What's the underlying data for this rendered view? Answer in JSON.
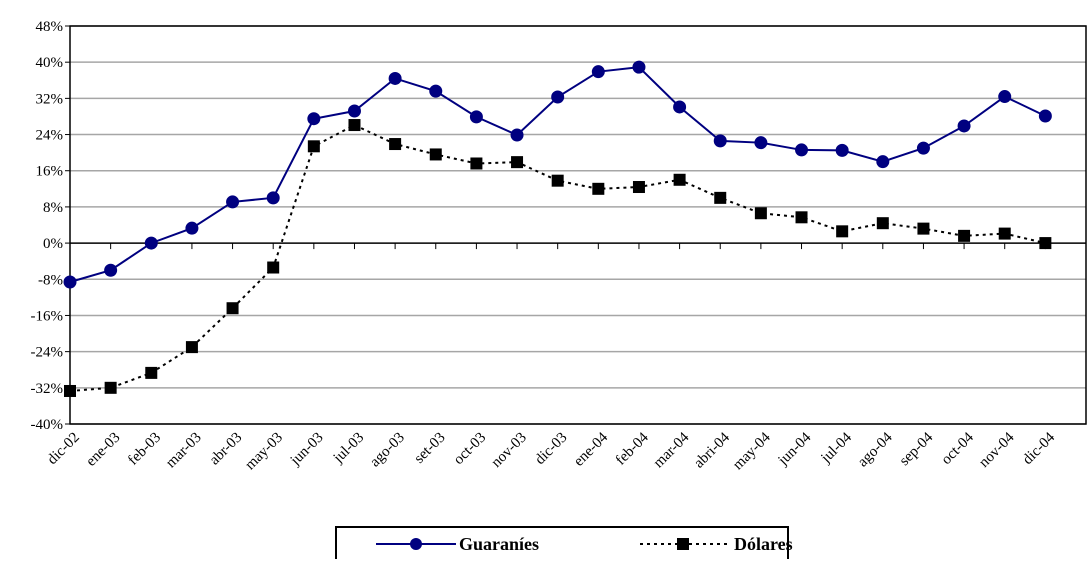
{
  "chart_data": {
    "type": "line",
    "categories": [
      "dic-02",
      "ene-03",
      "feb-03",
      "mar-03",
      "abr-03",
      "may-03",
      "jun-03",
      "jul-03",
      "ago-03",
      "set-03",
      "oct-03",
      "nov-03",
      "dic-03",
      "ene-04",
      "feb-04",
      "mar-04",
      "abri-04",
      "may-04",
      "jun-04",
      "jul-04",
      "ago-04",
      "sep-04",
      "oct-04",
      "nov-04",
      "dic-04"
    ],
    "y_ticks": [
      "48%",
      "40%",
      "32%",
      "24%",
      "16%",
      "8%",
      "0%",
      "-8%",
      "-16%",
      "-24%",
      "-32%",
      "-40%"
    ],
    "ylim": [
      -40,
      48
    ],
    "grid": true,
    "legend_position": "bottom-center",
    "series": [
      {
        "name": "Guaraníes",
        "color": "#000080",
        "marker": "circle",
        "line_style": "solid",
        "values": [
          -8.6,
          -6.0,
          0.0,
          3.3,
          9.1,
          10.0,
          27.5,
          29.2,
          36.4,
          33.6,
          27.9,
          23.9,
          32.3,
          37.9,
          38.9,
          30.1,
          22.6,
          22.2,
          20.6,
          20.5,
          18.0,
          21.0,
          25.9,
          32.4,
          28.1
        ]
      },
      {
        "name": "Dólares",
        "color": "#000000",
        "marker": "square",
        "line_style": "dotted",
        "values": [
          -32.7,
          -32.0,
          -28.7,
          -23.0,
          -14.4,
          -5.4,
          21.4,
          26.1,
          21.9,
          19.6,
          17.6,
          17.9,
          13.8,
          12.0,
          12.4,
          14.0,
          10.0,
          6.6,
          5.7,
          2.6,
          4.4,
          3.2,
          1.6,
          2.1,
          0.0
        ]
      }
    ]
  }
}
